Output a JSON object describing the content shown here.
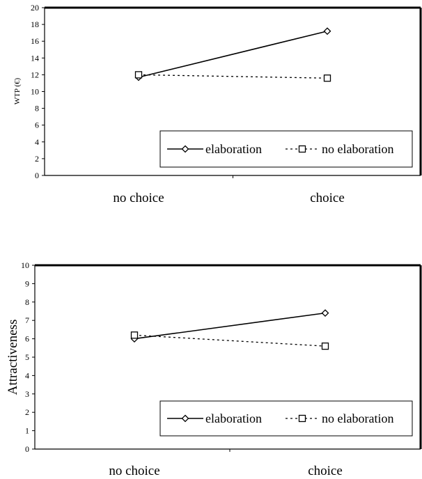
{
  "chart_data": [
    {
      "type": "line",
      "categories": [
        "no choice",
        "choice"
      ],
      "ylabel": "WTP (€)",
      "ylim": [
        0,
        20
      ],
      "yticks": [
        "0",
        "2",
        "4",
        "6",
        "8",
        "10",
        "12",
        "14",
        "16",
        "18",
        "20"
      ],
      "grid": false,
      "legend_position": "bottom-right",
      "series": [
        {
          "name": "elaboration",
          "marker": "diamond",
          "line": "solid",
          "values": [
            11.7,
            17.2
          ]
        },
        {
          "name": "no elaboration",
          "marker": "square",
          "line": "dashed",
          "values": [
            12.0,
            11.6
          ]
        }
      ]
    },
    {
      "type": "line",
      "categories": [
        "no choice",
        "choice"
      ],
      "ylabel": "Attractiveness",
      "ylim": [
        0,
        10
      ],
      "yticks": [
        "0",
        "1",
        "2",
        "3",
        "4",
        "5",
        "6",
        "7",
        "8",
        "9",
        "10"
      ],
      "grid": false,
      "legend_position": "bottom-right",
      "series": [
        {
          "name": "elaboration",
          "marker": "diamond",
          "line": "solid",
          "values": [
            6.0,
            7.4
          ]
        },
        {
          "name": "no elaboration",
          "marker": "square",
          "line": "dashed",
          "values": [
            6.2,
            5.6
          ]
        }
      ]
    }
  ]
}
